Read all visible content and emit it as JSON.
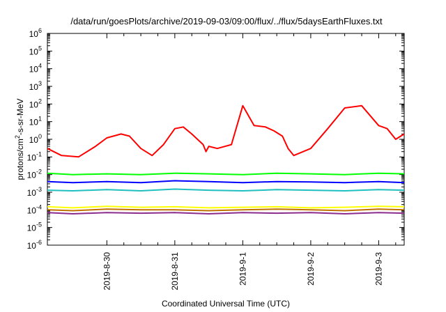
{
  "chart_data": {
    "type": "line",
    "title": "/data/run/goesPlots/archive/2019-09-03/09:00/flux/../flux/5daysEarthFluxes.txt",
    "xlabel": "Coordinated Universal Time (UTC)",
    "ylabel": "protons/cm2-s-sr-MeV",
    "ylabel_parts": {
      "pre": "protons/cm",
      "sup": "2",
      "post": "-s-sr-MeV"
    },
    "y_scale": "log",
    "ylim": [
      1e-06,
      1000000.0
    ],
    "y_ticks": [
      {
        "base": "10",
        "exp": "-6",
        "value": 1e-06
      },
      {
        "base": "10",
        "exp": "-5",
        "value": 1e-05
      },
      {
        "base": "10",
        "exp": "-4",
        "value": 0.0001
      },
      {
        "base": "10",
        "exp": "-3",
        "value": 0.001
      },
      {
        "base": "10",
        "exp": "-2",
        "value": 0.01
      },
      {
        "base": "10",
        "exp": "-1",
        "value": 0.1
      },
      {
        "base": "10",
        "exp": "0",
        "value": 1
      },
      {
        "base": "10",
        "exp": "1",
        "value": 10
      },
      {
        "base": "10",
        "exp": "2",
        "value": 100
      },
      {
        "base": "10",
        "exp": "3",
        "value": 1000
      },
      {
        "base": "10",
        "exp": "4",
        "value": 10000
      },
      {
        "base": "10",
        "exp": "5",
        "value": 100000
      },
      {
        "base": "10",
        "exp": "6",
        "value": 1000000
      }
    ],
    "xlim": [
      "2019-08-29 03:00",
      "2019-09-03 09:00"
    ],
    "x_ticks": [
      "2019-8-30",
      "2019-8-31",
      "2019-9-1",
      "2019-9-2",
      "2019-9-3"
    ],
    "grid": false,
    "legend": "none",
    "series": [
      {
        "color": "#ff0000",
        "x": [
          "2019-08-29 03:00",
          "2019-08-29 08:00",
          "2019-08-29 14:00",
          "2019-08-29 20:00",
          "2019-08-30 00:00",
          "2019-08-30 05:00",
          "2019-08-30 08:00",
          "2019-08-30 12:00",
          "2019-08-30 16:00",
          "2019-08-30 20:00",
          "2019-08-31 00:00",
          "2019-08-31 03:00",
          "2019-08-31 06:00",
          "2019-08-31 10:00",
          "2019-08-31 11:00",
          "2019-08-31 12:00",
          "2019-08-31 15:00",
          "2019-08-31 20:00",
          "2019-09-01 00:00",
          "2019-09-01 04:00",
          "2019-09-01 08:00",
          "2019-09-01 11:00",
          "2019-09-01 14:00",
          "2019-09-01 16:00",
          "2019-09-01 18:00",
          "2019-09-02 00:00",
          "2019-09-02 06:00",
          "2019-09-02 12:00",
          "2019-09-02 18:00",
          "2019-09-03 00:00",
          "2019-09-03 03:00",
          "2019-09-03 06:00",
          "2019-09-03 09:00"
        ],
        "y": [
          0.3,
          0.12,
          0.1,
          0.4,
          1.2,
          2,
          1.5,
          0.3,
          0.12,
          0.5,
          4,
          5,
          2,
          0.5,
          0.2,
          0.4,
          0.3,
          0.5,
          80,
          6,
          5,
          3,
          1.5,
          0.3,
          0.12,
          0.3,
          4,
          60,
          80,
          6,
          4,
          1,
          2
        ]
      },
      {
        "color": "#00ff00",
        "x": [
          "2019-08-29 03:00",
          "2019-08-29 12:00",
          "2019-08-30 00:00",
          "2019-08-30 12:00",
          "2019-08-31 00:00",
          "2019-08-31 12:00",
          "2019-09-01 00:00",
          "2019-09-01 12:00",
          "2019-09-02 00:00",
          "2019-09-02 12:00",
          "2019-09-03 00:00",
          "2019-09-03 09:00"
        ],
        "y": [
          0.012,
          0.01,
          0.011,
          0.01,
          0.012,
          0.011,
          0.01,
          0.012,
          0.011,
          0.01,
          0.012,
          0.011
        ]
      },
      {
        "color": "#0000ff",
        "x": [
          "2019-08-29 03:00",
          "2019-08-29 12:00",
          "2019-08-30 00:00",
          "2019-08-30 12:00",
          "2019-08-31 00:00",
          "2019-08-31 12:00",
          "2019-09-01 00:00",
          "2019-09-01 12:00",
          "2019-09-02 00:00",
          "2019-09-02 12:00",
          "2019-09-03 00:00",
          "2019-09-03 09:00"
        ],
        "y": [
          0.004,
          0.0035,
          0.004,
          0.0035,
          0.0045,
          0.004,
          0.0035,
          0.004,
          0.0038,
          0.0035,
          0.004,
          0.0035
        ]
      },
      {
        "color": "#1fbfbf",
        "x": [
          "2019-08-29 03:00",
          "2019-08-29 12:00",
          "2019-08-30 00:00",
          "2019-08-30 12:00",
          "2019-08-31 00:00",
          "2019-08-31 12:00",
          "2019-09-01 00:00",
          "2019-09-01 12:00",
          "2019-09-02 00:00",
          "2019-09-02 12:00",
          "2019-09-03 00:00",
          "2019-09-03 09:00"
        ],
        "y": [
          0.0013,
          0.0012,
          0.0014,
          0.0012,
          0.0015,
          0.0013,
          0.0012,
          0.0014,
          0.0013,
          0.0012,
          0.0014,
          0.0013
        ]
      },
      {
        "color": "#ffff00",
        "x": [
          "2019-08-29 03:00",
          "2019-08-29 12:00",
          "2019-08-30 00:00",
          "2019-08-30 12:00",
          "2019-08-31 00:00",
          "2019-08-31 12:00",
          "2019-09-01 00:00",
          "2019-09-01 12:00",
          "2019-09-02 00:00",
          "2019-09-02 12:00",
          "2019-09-03 00:00",
          "2019-09-03 09:00"
        ],
        "y": [
          0.00015,
          0.00013,
          0.00016,
          0.00014,
          0.00015,
          0.00013,
          0.00014,
          0.00015,
          0.00013,
          0.00014,
          0.00016,
          0.00015
        ]
      },
      {
        "color": "#c07000",
        "x": [
          "2019-08-29 03:00",
          "2019-08-29 12:00",
          "2019-08-30 00:00",
          "2019-08-30 12:00",
          "2019-08-31 00:00",
          "2019-08-31 12:00",
          "2019-09-01 00:00",
          "2019-09-01 12:00",
          "2019-09-02 00:00",
          "2019-09-02 12:00",
          "2019-09-03 00:00",
          "2019-09-03 09:00"
        ],
        "y": [
          0.0001,
          9e-05,
          0.00011,
          0.0001,
          0.0001,
          9e-05,
          0.0001,
          0.00011,
          0.0001,
          9e-05,
          0.00011,
          0.0001
        ]
      },
      {
        "color": "#8b2b8b",
        "x": [
          "2019-08-29 03:00",
          "2019-08-29 12:00",
          "2019-08-30 00:00",
          "2019-08-30 12:00",
          "2019-08-31 00:00",
          "2019-08-31 12:00",
          "2019-09-01 00:00",
          "2019-09-01 12:00",
          "2019-09-02 00:00",
          "2019-09-02 12:00",
          "2019-09-03 00:00",
          "2019-09-03 09:00"
        ],
        "y": [
          7e-05,
          6e-05,
          7e-05,
          6.5e-05,
          7e-05,
          6e-05,
          7e-05,
          6.5e-05,
          7e-05,
          6e-05,
          7e-05,
          6.5e-05
        ]
      }
    ]
  }
}
